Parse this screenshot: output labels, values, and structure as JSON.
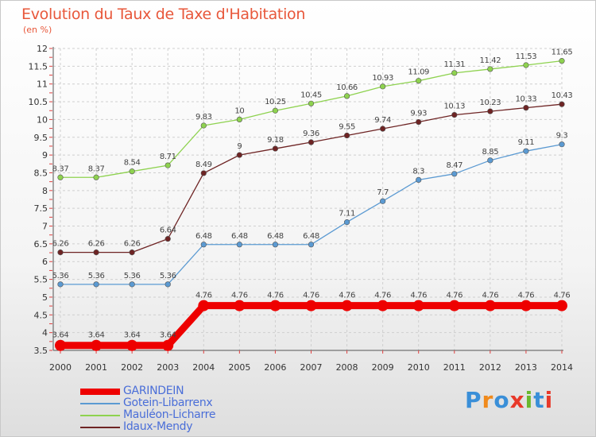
{
  "title": "Evolution du Taux de Taxe d'Habitation",
  "subtitle": "(en %)",
  "logo_text": "Proxiti",
  "logo_colors": [
    "#3a8fd8",
    "#f08a1c",
    "#3a8fd8",
    "#e8392a",
    "#6ab82e",
    "#3a8fd8",
    "#e8392a"
  ],
  "chart_data": {
    "type": "line",
    "x": [
      2000,
      2001,
      2002,
      2003,
      2004,
      2005,
      2006,
      2007,
      2008,
      2009,
      2010,
      2011,
      2012,
      2013,
      2014
    ],
    "ylim": [
      3.5,
      12
    ],
    "yticks": [
      3.5,
      4,
      4.5,
      5,
      5.5,
      6,
      6.5,
      7,
      7.5,
      8,
      8.5,
      9,
      9.5,
      10,
      10.5,
      11,
      11.5,
      12
    ],
    "ytick_labels": [
      "3.5",
      "4",
      "4.5",
      "5",
      "5.5",
      "6",
      "6.5",
      "7",
      "7.5",
      "8",
      "8.5",
      "9",
      "9.5",
      "10",
      "10.5",
      "11",
      "11.5",
      "12"
    ],
    "grid": "dashed",
    "legend_position": "bottom-left",
    "series": [
      {
        "name": "GARINDEIN",
        "color": "#ee0000",
        "values": [
          3.64,
          3.64,
          3.64,
          3.64,
          4.76,
          4.76,
          4.76,
          4.76,
          4.76,
          4.76,
          4.76,
          4.76,
          4.76,
          4.76,
          4.76
        ],
        "labels": [
          "3.64",
          "3.64",
          "3.64",
          "3.64",
          "4.76",
          "4.76",
          "4.76",
          "4.76",
          "4.76",
          "4.76",
          "4.76",
          "4.76",
          "4.76",
          "4.76",
          "4.76"
        ]
      },
      {
        "name": "Gotein-Libarrenx",
        "color": "#5b9ad2",
        "values": [
          5.36,
          5.36,
          5.36,
          5.36,
          6.48,
          6.48,
          6.48,
          6.48,
          7.11,
          7.7,
          8.3,
          8.47,
          8.85,
          9.11,
          9.3
        ],
        "labels": [
          "5.36",
          "5.36",
          "5.36",
          "5.36",
          "6.48",
          "6.48",
          "6.48",
          "6.48",
          "7.11",
          "7.7",
          "8.3",
          "8.47",
          "8.85",
          "9.11",
          "9.3"
        ]
      },
      {
        "name": "Mauléon-Licharre",
        "color": "#8ed24f",
        "values": [
          8.37,
          8.37,
          8.54,
          8.71,
          9.83,
          10,
          10.25,
          10.45,
          10.66,
          10.93,
          11.09,
          11.31,
          11.42,
          11.53,
          11.65
        ],
        "labels": [
          "8.37",
          "8.37",
          "8.54",
          "8.71",
          "9.83",
          "10",
          "10.25",
          "10.45",
          "10.66",
          "10.93",
          "11.09",
          "11.31",
          "11.42",
          "11.53",
          "11.65"
        ]
      },
      {
        "name": "Idaux-Mendy",
        "color": "#6e2424",
        "values": [
          6.26,
          6.26,
          6.26,
          6.64,
          8.49,
          9,
          9.18,
          9.36,
          9.55,
          9.74,
          9.93,
          10.13,
          10.23,
          10.33,
          10.43
        ],
        "labels": [
          "6.26",
          "6.26",
          "6.26",
          "6.64",
          "8.49",
          "9",
          "9.18",
          "9.36",
          "9.55",
          "9.74",
          "9.93",
          "10.13",
          "10.23",
          "10.33",
          "10.43"
        ]
      }
    ]
  }
}
